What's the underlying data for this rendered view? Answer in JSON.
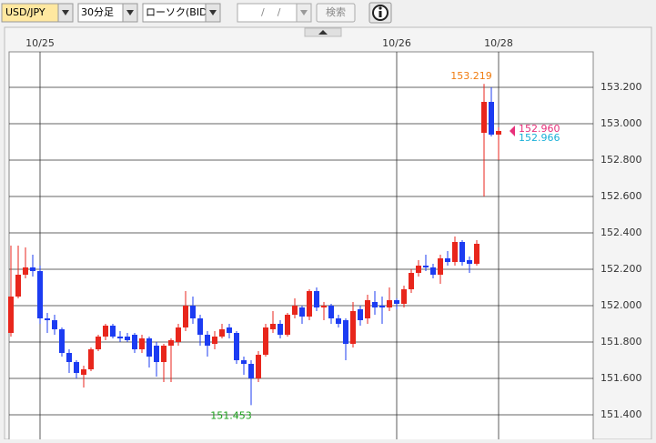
{
  "toolbar": {
    "symbol": "USD/JPY",
    "interval": "30分足",
    "chart_kind": "ローソク(BID)",
    "date": "/    /",
    "search": "検索"
  },
  "chart_data": {
    "type": "candlestick",
    "categories": [
      null,
      null,
      null,
      null,
      "10/25",
      null,
      null,
      null,
      null,
      null,
      null,
      null,
      null,
      null,
      null,
      null,
      null,
      null,
      null,
      null,
      null,
      null,
      null,
      null,
      null,
      null,
      null,
      null,
      null,
      null,
      null,
      null,
      null,
      null,
      null,
      null,
      null,
      null,
      null,
      null,
      null,
      null,
      null,
      null,
      null,
      null,
      null,
      null,
      null,
      null,
      null,
      null,
      null,
      "10/26",
      null,
      null,
      null,
      null,
      null,
      null,
      null,
      null,
      null,
      null,
      null,
      null,
      null,
      "10/28"
    ],
    "open": [
      151.85,
      152.05,
      152.17,
      152.21,
      152.19,
      151.93,
      151.92,
      151.87,
      151.74,
      151.69,
      151.62,
      151.65,
      151.76,
      151.83,
      151.89,
      151.83,
      151.83,
      151.84,
      151.76,
      151.82,
      151.78,
      151.69,
      151.78,
      151.8,
      151.88,
      152.0,
      151.93,
      151.84,
      151.79,
      151.83,
      151.88,
      151.85,
      151.7,
      151.68,
      151.6,
      151.73,
      151.87,
      151.9,
      151.84,
      151.95,
      151.99,
      151.94,
      152.08,
      151.99,
      152.0,
      151.93,
      151.92,
      151.79,
      151.98,
      151.93,
      152.02,
      152.0,
      151.99,
      152.03,
      152.01,
      152.09,
      152.18,
      152.22,
      152.21,
      152.17,
      152.26,
      152.24,
      152.35,
      152.25,
      152.23,
      152.95,
      153.12,
      152.94
    ],
    "high": [
      152.33,
      152.33,
      152.32,
      152.28,
      152.22,
      151.96,
      151.95,
      151.88,
      151.76,
      151.7,
      151.67,
      151.77,
      151.84,
      151.9,
      151.9,
      151.86,
      151.85,
      151.85,
      151.84,
      151.83,
      151.8,
      151.79,
      151.82,
      151.9,
      152.08,
      152.05,
      151.95,
      151.86,
      151.86,
      151.9,
      151.9,
      151.86,
      151.72,
      151.7,
      151.75,
      151.9,
      151.97,
      151.92,
      151.96,
      152.04,
      152.0,
      152.09,
      152.1,
      152.02,
      152.01,
      151.95,
      151.93,
      152.02,
      152.0,
      152.06,
      152.08,
      152.05,
      152.1,
      152.04,
      152.11,
      152.2,
      152.25,
      152.28,
      152.23,
      152.28,
      152.3,
      152.38,
      152.36,
      152.27,
      152.36,
      153.219,
      153.2,
      152.98
    ],
    "low": [
      151.83,
      152.04,
      152.15,
      152.16,
      151.9,
      151.85,
      151.84,
      151.72,
      151.63,
      151.6,
      151.55,
      151.64,
      151.75,
      151.81,
      151.82,
      151.8,
      151.8,
      151.74,
      151.74,
      151.66,
      151.61,
      151.58,
      151.58,
      151.78,
      151.86,
      151.9,
      151.78,
      151.72,
      151.76,
      151.82,
      151.82,
      151.68,
      151.62,
      151.453,
      151.58,
      151.72,
      151.85,
      151.82,
      151.83,
      151.93,
      151.9,
      151.92,
      151.97,
      151.92,
      151.9,
      151.88,
      151.7,
      151.77,
      151.89,
      151.9,
      151.95,
      151.9,
      151.97,
      151.98,
      151.99,
      152.07,
      152.16,
      152.19,
      152.15,
      152.12,
      152.22,
      152.22,
      152.22,
      152.18,
      152.22,
      152.6,
      152.93,
      152.8
    ],
    "close": [
      152.05,
      152.17,
      152.21,
      152.19,
      151.93,
      151.92,
      151.87,
      151.74,
      151.69,
      151.63,
      151.65,
      151.76,
      151.83,
      151.89,
      151.83,
      151.82,
      151.81,
      151.76,
      151.82,
      151.72,
      151.69,
      151.78,
      151.81,
      151.88,
      152.0,
      151.93,
      151.84,
      151.78,
      151.83,
      151.87,
      151.85,
      151.7,
      151.68,
      151.6,
      151.73,
      151.88,
      151.9,
      151.84,
      151.95,
      152.0,
      151.94,
      152.08,
      151.99,
      152.0,
      151.93,
      151.9,
      151.79,
      151.97,
      151.92,
      152.03,
      151.99,
      151.99,
      152.03,
      152.01,
      152.09,
      152.18,
      152.22,
      152.21,
      152.17,
      152.26,
      152.24,
      152.35,
      152.24,
      152.23,
      152.34,
      153.12,
      152.94,
      152.96
    ],
    "up_color": "#e8261c",
    "down_color": "#1c3cf2",
    "ylim": [
      151.265,
      153.395
    ],
    "yticks": [
      {
        "value": 151.4,
        "label": "151.400"
      },
      {
        "value": 151.6,
        "label": "151.600"
      },
      {
        "value": 151.8,
        "label": "151.800"
      },
      {
        "value": 152.0,
        "label": "152.000"
      },
      {
        "value": 152.2,
        "label": "152.200"
      },
      {
        "value": 152.4,
        "label": "152.400"
      },
      {
        "value": 152.6,
        "label": "152.600"
      },
      {
        "value": 152.8,
        "label": "152.800"
      },
      {
        "value": 153.0,
        "label": "153.000"
      },
      {
        "value": 153.2,
        "label": "153.200"
      }
    ],
    "grid": true,
    "annotations": [
      {
        "value": 153.219,
        "label": "153.219",
        "color": "#f07c10"
      },
      {
        "value": 151.453,
        "label": "151.453",
        "color": "#1aa01a"
      }
    ],
    "price_markers": [
      {
        "value": 152.96,
        "label": "152.960",
        "color": "#e8307a"
      },
      {
        "value": 152.966,
        "label": "152.966",
        "color": "#1ab0d8"
      }
    ]
  }
}
